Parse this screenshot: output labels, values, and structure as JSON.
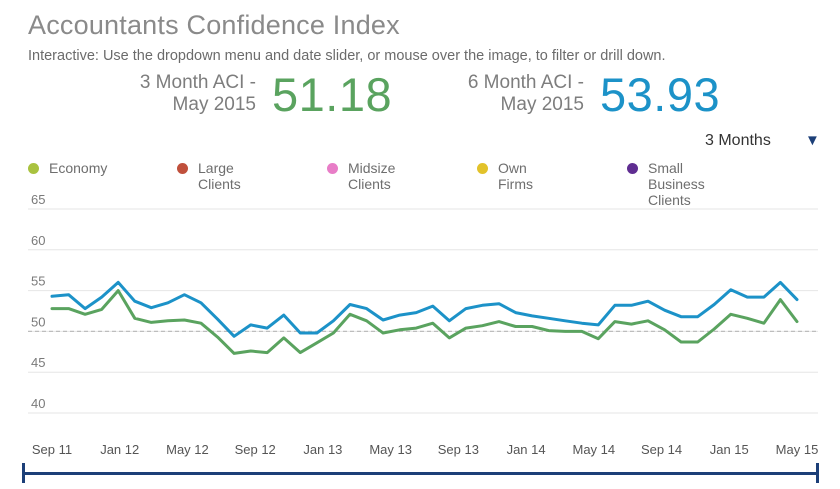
{
  "header": {
    "title": "Accountants Confidence Index",
    "subtitle": "Interactive: Use the dropdown menu and date slider, or mouse over the image, to filter or drill down."
  },
  "kpis": [
    {
      "label_line1": "3 Month ACI -",
      "label_line2": "May 2015",
      "value": "51.18",
      "color": "#5aa35f"
    },
    {
      "label_line1": "6 Month ACI -",
      "label_line2": "May 2015",
      "value": "53.93",
      "color": "#1c92c8"
    }
  ],
  "dropdown": {
    "selected": "3 Months",
    "arrow_icon": "triangle-down-icon",
    "arrow_glyph": "▼"
  },
  "legend": [
    {
      "label": "Economy",
      "color": "#a9c23f"
    },
    {
      "label": "Large Clients",
      "color": "#c0503c"
    },
    {
      "label": "Midsize Clients",
      "color": "#e87dc7"
    },
    {
      "label": "Own Firms",
      "color": "#e2c22a"
    },
    {
      "label": "Small Business",
      "label2": "Clients",
      "color": "#5f2d91"
    }
  ],
  "chart_data": {
    "type": "line",
    "title": "Accountants Confidence Index",
    "xlabel": "",
    "ylabel": "",
    "ylim": [
      40,
      65
    ],
    "yticks": [
      40,
      45,
      50,
      55,
      60,
      65
    ],
    "reference_line": 50,
    "grid": true,
    "x_tick_labels": [
      "Sep 11",
      "Jan 12",
      "May 12",
      "Sep 12",
      "Jan 13",
      "May 13",
      "Sep 13",
      "Jan 14",
      "May 14",
      "Sep 14",
      "Jan 15",
      "May 15"
    ],
    "series": [
      {
        "name": "6 Month ACI",
        "color": "#1c92c8",
        "values": [
          54.3,
          54.5,
          52.8,
          54.2,
          56.0,
          53.7,
          52.9,
          53.5,
          54.5,
          53.5,
          51.5,
          49.4,
          50.8,
          50.4,
          52.0,
          49.8,
          49.8,
          51.3,
          53.3,
          52.8,
          51.4,
          52.0,
          52.3,
          53.1,
          51.3,
          52.8,
          53.2,
          53.4,
          52.3,
          51.9,
          51.6,
          51.3,
          51.0,
          50.8,
          53.2,
          53.2,
          53.7,
          52.6,
          51.8,
          51.8,
          53.3,
          55.1,
          54.2,
          54.2,
          56.0,
          53.9
        ]
      },
      {
        "name": "3 Month ACI",
        "color": "#5aa35f",
        "values": [
          52.8,
          52.8,
          52.1,
          52.7,
          55.0,
          51.6,
          51.1,
          51.3,
          51.4,
          51.0,
          49.3,
          47.3,
          47.6,
          47.4,
          49.2,
          47.4,
          48.6,
          49.8,
          52.1,
          51.3,
          49.8,
          50.2,
          50.4,
          51.0,
          49.2,
          50.4,
          50.7,
          51.2,
          50.6,
          50.6,
          50.1,
          50.0,
          50.0,
          49.1,
          51.2,
          50.9,
          51.3,
          50.2,
          48.7,
          48.7,
          50.3,
          52.1,
          51.6,
          51.0,
          53.9,
          51.2
        ]
      }
    ]
  }
}
